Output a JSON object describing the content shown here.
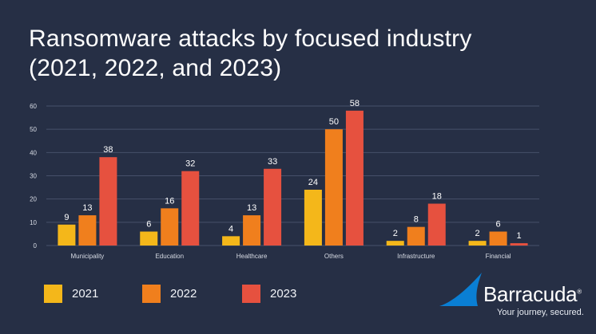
{
  "title": {
    "line1": "Ransomware attacks by focused industry",
    "line2": "(2021, 2022, and 2023)"
  },
  "colors": {
    "background": "#262f45",
    "gridline": "#46506a",
    "axis_text": "#d7dbe4",
    "label_text": "#ffffff"
  },
  "chart_data": {
    "type": "bar",
    "title": "Ransomware attacks by focused industry (2021, 2022, and 2023)",
    "categories": [
      "Municipality",
      "Education",
      "Healthcare",
      "Others",
      "Infrastructure",
      "Financial"
    ],
    "series": [
      {
        "name": "2021",
        "color": "#f4b71a",
        "values": [
          9,
          6,
          4,
          24,
          2,
          2
        ]
      },
      {
        "name": "2022",
        "color": "#f07f1d",
        "values": [
          13,
          16,
          13,
          50,
          8,
          6
        ]
      },
      {
        "name": "2023",
        "color": "#e6513f",
        "values": [
          38,
          32,
          33,
          58,
          18,
          1
        ]
      }
    ],
    "yticks": [
      0,
      10,
      20,
      30,
      40,
      50,
      60
    ],
    "ylim": [
      0,
      60
    ],
    "grid": true,
    "legend": "bottom-left",
    "data_labels": true
  },
  "brand": {
    "name": "Barracuda",
    "registered_mark": "®",
    "tagline": "Your journey, secured.",
    "logo_icon": "barracuda-fin-icon",
    "logo_color": "#0a7fd4"
  }
}
